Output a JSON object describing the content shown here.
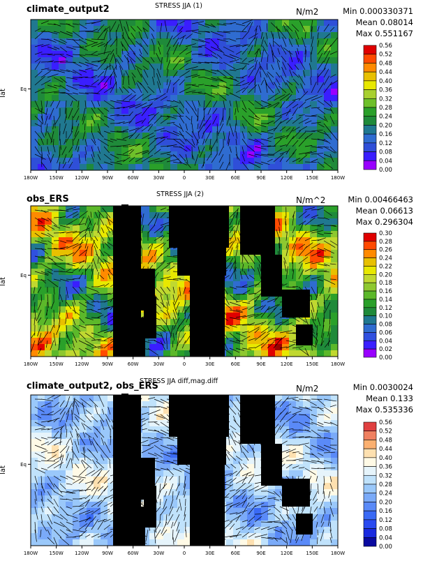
{
  "panels": [
    {
      "case": "climate_output2",
      "title": "STRESS JJA (1)",
      "units": "N/m2",
      "min": "Min 0.000330371",
      "mean": "Mean 0.08014",
      "max": "Max 0.551167",
      "ylabel": "lat",
      "eq_label": "Eq",
      "colorbar_levels": [
        "0.56",
        "0.52",
        "0.48",
        "0.44",
        "0.40",
        "0.36",
        "0.32",
        "0.28",
        "0.24",
        "0.20",
        "0.16",
        "0.12",
        "0.08",
        "0.04",
        "0.00"
      ],
      "palette": [
        "#9900ff",
        "#3a1eff",
        "#2f4fd8",
        "#2f6cd0",
        "#207890",
        "#1f8a3a",
        "#2aa02a",
        "#6ec02a",
        "#a8d030",
        "#e8e800",
        "#e8c000",
        "#ff8a00",
        "#ff4a00",
        "#e00000",
        "#9a0000"
      ]
    },
    {
      "case": "obs_ERS",
      "title": "STRESS JJA (2)",
      "units": "N/m^2",
      "min": "Min 0.00466463",
      "mean": "Mean 0.06613",
      "max": "Max 0.296304",
      "ylabel": "lat",
      "eq_label": "Eq",
      "colorbar_levels": [
        "0.30",
        "0.28",
        "0.26",
        "0.24",
        "0.22",
        "0.20",
        "0.18",
        "0.16",
        "0.14",
        "0.12",
        "0.10",
        "0.08",
        "0.06",
        "0.04",
        "0.02",
        "0.00"
      ],
      "palette": [
        "#9900ff",
        "#3a1eff",
        "#3050e0",
        "#2f6cd0",
        "#207890",
        "#1f8a3a",
        "#2aa02a",
        "#5cb82a",
        "#8ec830",
        "#c0d830",
        "#e8e800",
        "#e8c000",
        "#ff8a00",
        "#ff4a00",
        "#e00000",
        "#9a0000"
      ]
    },
    {
      "case": "climate_output2, obs_ERS",
      "title": "STRESS JJA diff,mag.diff",
      "units": "N/m2",
      "min": "Min 0.0030024",
      "mean": "Mean 0.133",
      "max": "Max 0.535336",
      "ylabel": "lat",
      "eq_label": "Eq",
      "colorbar_levels": [
        "0.56",
        "0.52",
        "0.48",
        "0.44",
        "0.40",
        "0.36",
        "0.32",
        "0.28",
        "0.24",
        "0.20",
        "0.16",
        "0.12",
        "0.08",
        "0.04",
        "0.00"
      ],
      "palette": [
        "#0a0aa0",
        "#1a2ae0",
        "#2a4af0",
        "#3a6af5",
        "#5a8af8",
        "#7aaaf8",
        "#9ac8fa",
        "#c0e2fb",
        "#e6f4fb",
        "#fffae6",
        "#fde0b0",
        "#fbb070",
        "#f08060",
        "#e04040",
        "#c80020"
      ]
    }
  ],
  "lon_ticks": [
    "180W",
    "150W",
    "120W",
    "90W",
    "60W",
    "30W",
    "0",
    "30E",
    "60E",
    "90E",
    "120E",
    "150E",
    "180W"
  ],
  "chart_data": [
    {
      "type": "heatmap",
      "title": "STRESS JJA (1)",
      "case": "climate_output2",
      "units": "N/m2",
      "xlabel": "",
      "ylabel": "lat",
      "x_ticks": [
        "180W",
        "150W",
        "120W",
        "90W",
        "60W",
        "30W",
        "0",
        "30E",
        "60E",
        "90E",
        "120E",
        "150E",
        "180W"
      ],
      "y_ticks": [
        "Eq"
      ],
      "stats": {
        "min": 0.000330371,
        "mean": 0.08014,
        "max": 0.551167
      },
      "color_levels": [
        0.0,
        0.04,
        0.08,
        0.12,
        0.16,
        0.2,
        0.24,
        0.28,
        0.32,
        0.36,
        0.4,
        0.44,
        0.48,
        0.52,
        0.56
      ],
      "overlay": "wind stress vectors"
    },
    {
      "type": "heatmap",
      "title": "STRESS JJA (2)",
      "case": "obs_ERS",
      "units": "N/m^2",
      "xlabel": "",
      "ylabel": "lat",
      "x_ticks": [
        "180W",
        "150W",
        "120W",
        "90W",
        "60W",
        "30W",
        "0",
        "30E",
        "60E",
        "90E",
        "120E",
        "150E",
        "180W"
      ],
      "y_ticks": [
        "Eq"
      ],
      "stats": {
        "min": 0.00466463,
        "mean": 0.06613,
        "max": 0.296304
      },
      "color_levels": [
        0.0,
        0.02,
        0.04,
        0.06,
        0.08,
        0.1,
        0.12,
        0.14,
        0.16,
        0.18,
        0.2,
        0.22,
        0.24,
        0.26,
        0.28,
        0.3
      ],
      "overlay": "wind stress vectors",
      "missing_color": "#000000"
    },
    {
      "type": "heatmap",
      "title": "STRESS JJA diff,mag.diff",
      "case": "climate_output2, obs_ERS",
      "units": "N/m2",
      "xlabel": "",
      "ylabel": "lat",
      "x_ticks": [
        "180W",
        "150W",
        "120W",
        "90W",
        "60W",
        "30W",
        "0",
        "30E",
        "60E",
        "90E",
        "120E",
        "150E",
        "180W"
      ],
      "y_ticks": [
        "Eq"
      ],
      "stats": {
        "min": 0.0030024,
        "mean": 0.133,
        "max": 0.535336
      },
      "color_levels": [
        0.0,
        0.04,
        0.08,
        0.12,
        0.16,
        0.2,
        0.24,
        0.28,
        0.32,
        0.36,
        0.4,
        0.44,
        0.48,
        0.52,
        0.56
      ],
      "overlay": "wind stress vectors",
      "missing_color": "#000000"
    }
  ]
}
